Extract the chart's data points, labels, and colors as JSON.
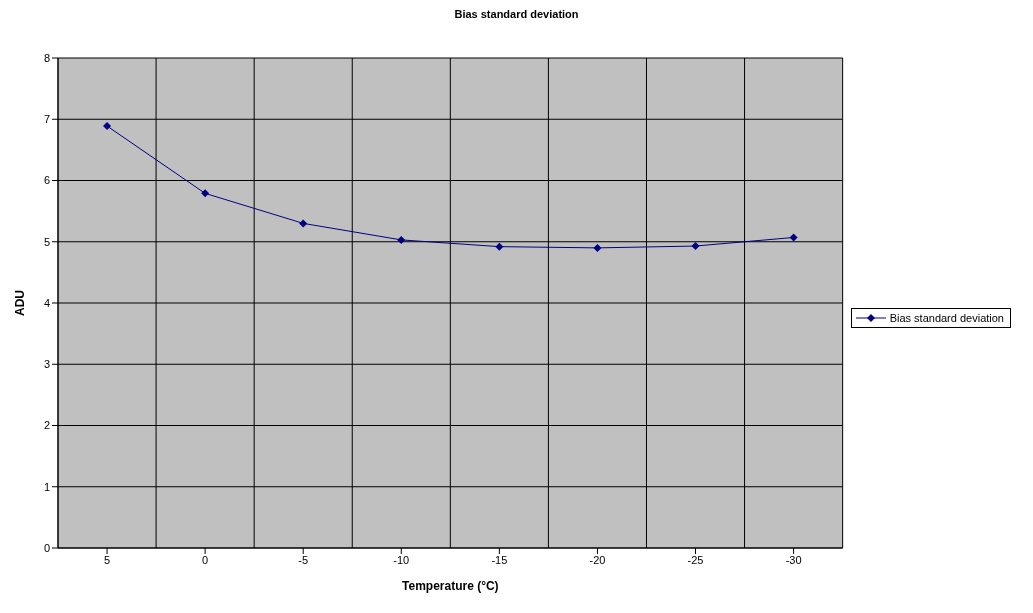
{
  "chart_data": {
    "type": "line",
    "title": "Bias standard deviation",
    "xlabel": "Temperature (°C)",
    "ylabel": "ADU",
    "categories": [
      "5",
      "0",
      "-5",
      "-10",
      "-15",
      "-20",
      "-25",
      "-30"
    ],
    "series": [
      {
        "name": "Bias standard deviation",
        "color": "#000080",
        "values": [
          6.89,
          5.79,
          5.3,
          5.03,
          4.92,
          4.9,
          4.93,
          5.07
        ]
      }
    ],
    "ylim": [
      0,
      8
    ],
    "yticks": [
      0,
      1,
      2,
      3,
      4,
      5,
      6,
      7,
      8
    ],
    "grid": true,
    "legend": "right",
    "marker": "diamond",
    "line_style": "solid"
  }
}
